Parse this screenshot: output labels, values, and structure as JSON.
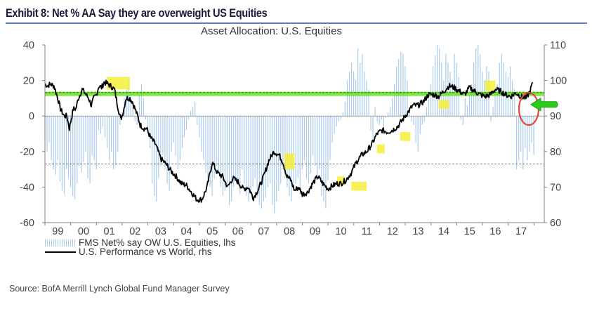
{
  "exhibit_title": "Exhibit 8: Net % AA Say they are overweight US Equities",
  "source": "Source: BofA Merrill Lynch Global Fund Manager Survey",
  "colors": {
    "bars": "#a8cbf0",
    "line": "#000000",
    "threshold_green": "#66dd22",
    "highlight_yellow": "#f5ee3a",
    "circle_red": "#e04a3a",
    "arrow_green": "#2ecc1a",
    "axis": "#808080",
    "title_rule": "#5b7db1"
  },
  "chart_data": {
    "type": "bar+line",
    "title": "Asset Allocation: U.S. Equities",
    "xlabel": "",
    "ylabel_left": "",
    "ylabel_right": "",
    "x_tick_labels": [
      "99",
      "00",
      "01",
      "02",
      "03",
      "04",
      "05",
      "06",
      "07",
      "08",
      "09",
      "10",
      "11",
      "12",
      "13",
      "14",
      "15",
      "16",
      "17"
    ],
    "y_left": {
      "range": [
        -60,
        40
      ],
      "ticks": [
        40,
        20,
        0,
        -20,
        -40,
        -60
      ]
    },
    "y_right": {
      "range": [
        60,
        110
      ],
      "ticks": [
        110,
        100,
        90,
        80,
        70,
        60
      ]
    },
    "legend": {
      "placement": "bottom-left",
      "entries": [
        {
          "label": "FMS Net% say OW U.S. Equities, lhs",
          "type": "bar"
        },
        {
          "label": "U.S. Performance vs World, rhs",
          "type": "line"
        }
      ]
    },
    "reference_lines": [
      {
        "name": "upper-threshold",
        "axis": "left",
        "value": 12.5,
        "style": "green-band-dashed"
      },
      {
        "name": "lower-threshold",
        "axis": "left",
        "value": -27,
        "style": "dashed"
      }
    ],
    "series": [
      {
        "name": "FMS Net% say OW U.S. Equities, lhs",
        "type": "bar",
        "axis": "left",
        "x_start": 1999.0,
        "x_step": 0.0833,
        "values": [
          -13,
          -20,
          -15,
          -25,
          -30,
          -33,
          -25,
          -37,
          -42,
          -44,
          -30,
          -35,
          -40,
          -45,
          -47,
          -38,
          -28,
          -32,
          -26,
          -20,
          -35,
          -38,
          -22,
          -25,
          -30,
          -8,
          -10,
          -6,
          -12,
          -18,
          -25,
          -20,
          -30,
          -28,
          -20,
          -5,
          2,
          10,
          15,
          20,
          12,
          5,
          -3,
          -5,
          12,
          18,
          10,
          -2,
          -10,
          -18,
          -38,
          -45,
          -48,
          -35,
          -28,
          -22,
          -30,
          -38,
          -42,
          -20,
          -15,
          -22,
          -30,
          -25,
          -18,
          -12,
          -8,
          -2,
          3,
          5,
          8,
          -5,
          -12,
          -20,
          -25,
          -32,
          -38,
          -40,
          -45,
          -35,
          -28,
          -32,
          -40,
          -45,
          -42,
          -38,
          -50,
          -48,
          -40,
          -35,
          -38,
          -44,
          -30,
          -38,
          -45,
          -48,
          -44,
          -40,
          -35,
          -45,
          -50,
          -52,
          -48,
          -46,
          -40,
          -38,
          -50,
          -55,
          -48,
          -42,
          -38,
          -30,
          -35,
          -40,
          -45,
          -48,
          -42,
          -38,
          -35,
          -40,
          -30,
          -25,
          -35,
          -38,
          -32,
          -22,
          -28,
          -35,
          -30,
          -45,
          -48,
          -52,
          -36,
          -25,
          -15,
          -10,
          -6,
          -3,
          -2,
          2,
          8,
          20,
          25,
          30,
          25,
          20,
          38,
          30,
          35,
          25,
          20,
          15,
          -8,
          -15,
          5,
          -3,
          -5,
          -2,
          -8,
          -1,
          2,
          5,
          10,
          18,
          28,
          32,
          36,
          35,
          28,
          20,
          5,
          -3,
          -5,
          -15,
          -20,
          -10,
          -5,
          -3,
          5,
          10,
          18,
          28,
          34,
          40,
          38,
          30,
          20,
          35,
          30,
          25,
          20,
          35,
          30,
          22,
          -2,
          -5,
          10,
          6,
          12,
          18,
          30,
          38,
          40,
          35,
          25,
          20,
          28,
          25,
          -3,
          5,
          12,
          18,
          30,
          35,
          30,
          25,
          22,
          28,
          20,
          15,
          -30,
          -25,
          -20,
          -30,
          -18,
          -25,
          -20,
          -15,
          -22,
          -28,
          -20,
          -10,
          -25,
          -20,
          -15,
          -30,
          -25,
          -18,
          -12,
          -10,
          -5,
          2,
          3,
          1,
          -3,
          -5,
          0,
          -5,
          -20,
          -25,
          -27,
          -28,
          -32,
          -30,
          -25,
          -22,
          -20,
          -25,
          -15,
          -10,
          -5,
          1,
          10
        ]
      },
      {
        "name": "U.S. Performance vs World, rhs",
        "type": "line",
        "axis": "right",
        "x": [
          1999.0,
          1999.1,
          1999.2,
          1999.35,
          1999.5,
          1999.6,
          1999.75,
          1999.85,
          1999.95,
          2000.1,
          2000.2,
          2000.3,
          2000.45,
          2000.6,
          2000.7,
          2000.8,
          2000.9,
          2001.0,
          2001.1,
          2001.2,
          2001.3,
          2001.45,
          2001.55,
          2001.7,
          2001.85,
          2001.95,
          2002.05,
          2002.15,
          2002.3,
          2002.4,
          2002.5,
          2002.6,
          2002.7,
          2002.85,
          2002.95,
          2003.1,
          2003.3,
          2003.5,
          2003.7,
          2003.9,
          2004.1,
          2004.3,
          2004.5,
          2004.7,
          2004.9,
          2005.1,
          2005.3,
          2005.5,
          2005.7,
          2005.9,
          2006.1,
          2006.3,
          2006.5,
          2006.7,
          2006.9,
          2007.1,
          2007.3,
          2007.5,
          2007.7,
          2007.9,
          2008.1,
          2008.25,
          2008.4,
          2008.55,
          2008.7,
          2008.85,
          2009.0,
          2009.2,
          2009.4,
          2009.6,
          2009.8,
          2010.0,
          2010.2,
          2010.35,
          2010.5,
          2010.7,
          2010.9,
          2011.1,
          2011.3,
          2011.5,
          2011.7,
          2011.9,
          2012.1,
          2012.3,
          2012.5,
          2012.7,
          2012.9,
          2013.1,
          2013.3,
          2013.5,
          2013.7,
          2013.9,
          2014.1,
          2014.3,
          2014.5,
          2014.7,
          2014.9,
          2015.1,
          2015.3,
          2015.5,
          2015.7,
          2015.9,
          2016.1,
          2016.3,
          2016.5,
          2016.7,
          2016.9,
          2017.1,
          2017.3,
          2017.5,
          2017.7,
          2017.85,
          2017.95
        ],
        "values": [
          99,
          98.5,
          99,
          98.5,
          95,
          92,
          90,
          90,
          86.5,
          92,
          92,
          95,
          97.5,
          96,
          95,
          93,
          95,
          96,
          98.5,
          98,
          99.5,
          99,
          98.5,
          97.5,
          92,
          89,
          91.5,
          95,
          95,
          94,
          92,
          90,
          87.5,
          86.5,
          86.5,
          84,
          82,
          78,
          76.5,
          74.5,
          73,
          71,
          70.5,
          68.5,
          66.5,
          66.5,
          70,
          77,
          74,
          73,
          70,
          72.5,
          71.5,
          69.5,
          70,
          67,
          69.5,
          73,
          77.5,
          80,
          79,
          77,
          73,
          72,
          69,
          70,
          68,
          68.5,
          71,
          73,
          71,
          69.5,
          70.5,
          71,
          71,
          72,
          74,
          77,
          79,
          80,
          82,
          85,
          86,
          85.5,
          86,
          87,
          89,
          91,
          93,
          93,
          94,
          96,
          96,
          95.5,
          97,
          98.5,
          98,
          97,
          96,
          98,
          97,
          96,
          95.5,
          96,
          97.5,
          97,
          96,
          95.5,
          96.5,
          95.5,
          95,
          97,
          99.5
        ]
      }
    ],
    "annotations": [
      {
        "type": "highlight-box",
        "x_range": [
          2001.4,
          2002.3
        ],
        "y_right_range": [
          97.5,
          101
        ]
      },
      {
        "type": "highlight-box",
        "x_range": [
          2008.3,
          2008.7
        ],
        "y_right_range": [
          75,
          79.5
        ]
      },
      {
        "type": "highlight-box",
        "x_range": [
          2010.35,
          2010.65
        ],
        "y_right_range": [
          70.5,
          73
        ]
      },
      {
        "type": "highlight-box",
        "x_range": [
          2010.9,
          2011.5
        ],
        "y_right_range": [
          69,
          71.5
        ]
      },
      {
        "type": "highlight-box",
        "x_range": [
          2011.9,
          2012.2
        ],
        "y_right_range": [
          79.5,
          82
        ]
      },
      {
        "type": "highlight-box",
        "x_range": [
          2012.8,
          2013.2
        ],
        "y_right_range": [
          83,
          85.5
        ]
      },
      {
        "type": "highlight-box",
        "x_range": [
          2014.3,
          2014.7
        ],
        "y_right_range": [
          92,
          94.5
        ]
      },
      {
        "type": "highlight-box",
        "x_range": [
          2016.1,
          2016.5
        ],
        "y_right_range": [
          97,
          100
        ]
      },
      {
        "type": "circle",
        "x": 2017.8,
        "y_right": 92
      },
      {
        "type": "arrow",
        "direction": "left",
        "x": 2018.1,
        "y_left": 6.5
      }
    ]
  }
}
